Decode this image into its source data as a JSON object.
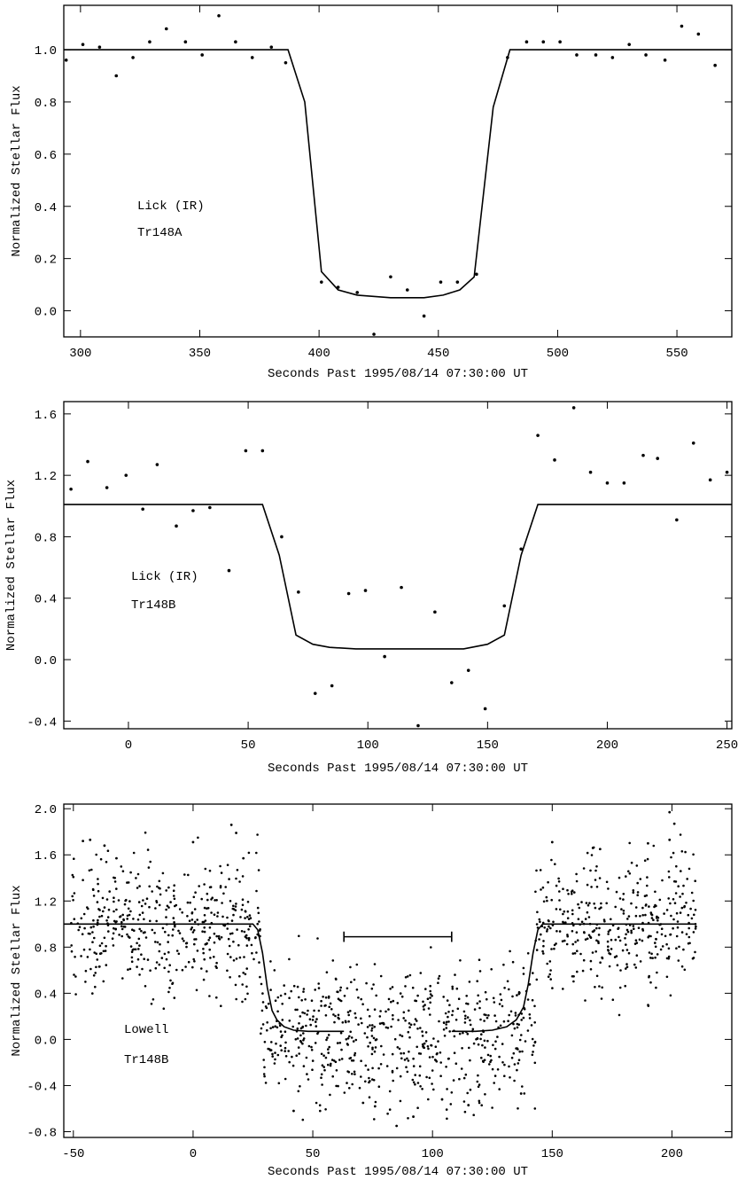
{
  "chart_data": [
    {
      "type": "scatter",
      "xlabel": "Seconds Past 1995/08/14 07:30:00 UT",
      "ylabel": "Normalized Stellar Flux",
      "annotations": [
        "Lick (IR)",
        "Tr148A"
      ],
      "xlim": [
        293,
        573
      ],
      "ylim": [
        -0.1,
        1.17
      ],
      "xticks": [
        300,
        350,
        400,
        450,
        500,
        550
      ],
      "xtick_labels": [
        "300",
        "350",
        "400",
        "450",
        "500",
        "550"
      ],
      "yticks": [
        0.0,
        0.2,
        0.4,
        0.6,
        0.8,
        1.0
      ],
      "ytick_labels": [
        "0.0",
        "0.2",
        "0.4",
        "0.6",
        "0.8",
        "1.0"
      ],
      "series": [
        {
          "type": "scatter",
          "x": [
            294,
            301,
            308,
            315,
            322,
            329,
            336,
            344,
            351,
            358,
            365,
            372,
            380,
            386,
            401,
            408,
            416,
            423,
            430,
            437,
            444,
            451,
            458,
            466,
            479,
            487,
            494,
            501,
            508,
            516,
            523,
            530,
            537,
            545,
            552,
            559,
            566
          ],
          "y": [
            0.96,
            1.02,
            1.01,
            0.9,
            0.97,
            1.03,
            1.08,
            1.03,
            0.98,
            1.13,
            1.03,
            0.97,
            1.01,
            0.95,
            0.11,
            0.09,
            0.07,
            -0.09,
            0.13,
            0.08,
            -0.02,
            0.11,
            0.11,
            0.14,
            0.97,
            1.03,
            1.03,
            1.03,
            0.98,
            0.98,
            0.97,
            1.02,
            0.98,
            0.96,
            1.09,
            1.06,
            0.94
          ]
        },
        {
          "type": "line",
          "x": [
            293,
            387,
            394,
            401,
            408,
            416,
            430,
            444,
            452,
            459,
            465,
            473,
            480,
            573
          ],
          "y": [
            1.0,
            1.0,
            0.8,
            0.15,
            0.08,
            0.06,
            0.05,
            0.05,
            0.06,
            0.08,
            0.13,
            0.78,
            1.0,
            1.0
          ]
        }
      ]
    },
    {
      "type": "scatter",
      "xlabel": "Seconds Past 1995/08/14 07:30:00 UT",
      "ylabel": "Normalized Stellar Flux",
      "annotations": [
        "Lick (IR)",
        "Tr148B"
      ],
      "xlim": [
        -27,
        252
      ],
      "ylim": [
        -0.45,
        1.68
      ],
      "xticks": [
        0,
        50,
        100,
        150,
        200,
        250
      ],
      "xtick_labels": [
        "0",
        "50",
        "100",
        "150",
        "200",
        "250"
      ],
      "yticks": [
        -0.4,
        0.0,
        0.4,
        0.8,
        1.2,
        1.6
      ],
      "ytick_labels": [
        "-0.4",
        "0.0",
        "0.4",
        "0.8",
        "1.2",
        "1.6"
      ],
      "series": [
        {
          "type": "scatter",
          "x": [
            -24,
            -17,
            -9,
            -1,
            6,
            12,
            20,
            27,
            34,
            42,
            49,
            56,
            64,
            71,
            78,
            85,
            92,
            99,
            107,
            114,
            121,
            128,
            135,
            142,
            149,
            157,
            164,
            171,
            178,
            186,
            193,
            200,
            207,
            215,
            221,
            229,
            236,
            243,
            250
          ],
          "y": [
            1.11,
            1.29,
            1.12,
            1.2,
            0.98,
            1.27,
            0.87,
            0.97,
            0.99,
            0.58,
            1.36,
            1.36,
            0.8,
            0.44,
            -0.22,
            -0.17,
            0.43,
            0.45,
            0.02,
            0.47,
            -0.43,
            0.31,
            -0.15,
            -0.07,
            -0.32,
            0.35,
            0.72,
            1.46,
            1.3,
            1.64,
            1.22,
            1.15,
            1.15,
            1.33,
            1.31,
            0.91,
            1.41,
            1.17,
            1.22
          ]
        },
        {
          "type": "line",
          "x": [
            -27,
            56,
            63,
            70,
            77,
            84,
            95,
            140,
            150,
            157,
            164,
            171,
            252
          ],
          "y": [
            1.01,
            1.01,
            0.68,
            0.16,
            0.1,
            0.08,
            0.07,
            0.07,
            0.1,
            0.16,
            0.68,
            1.01,
            1.01
          ]
        }
      ]
    },
    {
      "type": "scatter",
      "xlabel": "Seconds Past 1995/08/14 07:30:00 UT",
      "ylabel": "Normalized Stellar Flux",
      "annotations": [
        "Lowell",
        "Tr148B"
      ],
      "xlim": [
        -54,
        225
      ],
      "ylim": [
        -0.85,
        2.04
      ],
      "xticks": [
        -50,
        0,
        50,
        100,
        150,
        200
      ],
      "xtick_labels": [
        "-50",
        "0",
        "50",
        "100",
        "150",
        "200"
      ],
      "yticks": [
        -0.8,
        -0.4,
        0.0,
        0.4,
        0.8,
        1.2,
        1.6,
        2.0
      ],
      "ytick_labels": [
        "-0.8",
        "-0.4",
        "0.0",
        "0.4",
        "0.8",
        "1.2",
        "1.6",
        "2.0"
      ],
      "series": [
        {
          "type": "line",
          "x": [
            -54,
            25,
            27,
            29,
            31,
            33,
            35,
            38,
            42,
            48,
            55,
            62,
            63
          ],
          "y": [
            1.0,
            1.0,
            0.95,
            0.75,
            0.45,
            0.25,
            0.17,
            0.11,
            0.08,
            0.07,
            0.07,
            0.07,
            0.07
          ]
        },
        {
          "type": "line",
          "x": [
            108,
            110,
            118,
            125,
            131,
            135,
            138,
            140,
            142,
            144,
            146,
            210
          ],
          "y": [
            0.07,
            0.07,
            0.07,
            0.08,
            0.11,
            0.17,
            0.28,
            0.48,
            0.75,
            0.95,
            1.0,
            1.0
          ]
        },
        {
          "type": "errorbar",
          "x": [
            63,
            108
          ],
          "y": [
            0.89,
            0.89
          ],
          "cap": 0.045
        },
        {
          "type": "scatter_dense",
          "point_count": 1470,
          "x_range": [
            -51,
            210
          ],
          "out_of_transit_level": 1.0,
          "in_transit_level": 0.05,
          "in_transit_x": [
            28,
            143
          ],
          "scatter_sigma": 0.3,
          "outliers": [
            {
              "x": -46,
              "y": 1.72
            },
            {
              "x": -43,
              "y": 1.73
            },
            {
              "x": -37,
              "y": 1.68
            },
            {
              "x": -32,
              "y": 1.57
            },
            {
              "x": 0,
              "y": 1.71
            },
            {
              "x": 16,
              "y": 1.86
            },
            {
              "x": 18,
              "y": 1.79
            },
            {
              "x": 21,
              "y": 1.57
            },
            {
              "x": 150,
              "y": 1.71
            },
            {
              "x": 167,
              "y": 1.66
            },
            {
              "x": 170,
              "y": 1.65
            },
            {
              "x": 190,
              "y": 1.7
            },
            {
              "x": 199,
              "y": 1.97
            },
            {
              "x": 201,
              "y": 1.87
            },
            {
              "x": 199,
              "y": 1.73
            },
            {
              "x": 42,
              "y": -0.62
            },
            {
              "x": 71,
              "y": -0.55
            },
            {
              "x": 76,
              "y": -0.58
            },
            {
              "x": 85,
              "y": -0.75
            },
            {
              "x": 92,
              "y": -0.67
            },
            {
              "x": 104,
              "y": -0.52
            },
            {
              "x": 115,
              "y": -0.57
            },
            {
              "x": 137,
              "y": -0.47
            }
          ]
        }
      ]
    }
  ]
}
